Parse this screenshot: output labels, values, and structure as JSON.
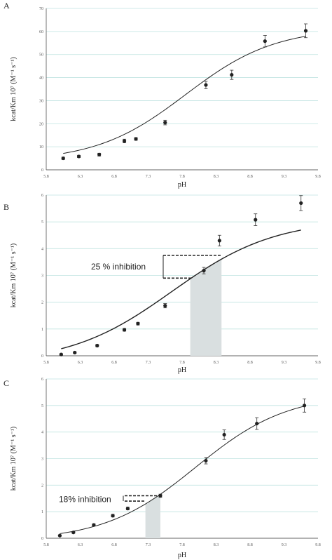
{
  "chart_data": [
    {
      "type": "scatter",
      "panel_label": "A",
      "xlabel": "pH",
      "ylabel": "kcat/Km 10⁷ (M⁻¹ s⁻¹)",
      "xlim": [
        5.8,
        9.8
      ],
      "ylim": [
        0,
        70
      ],
      "x_ticks": [
        "5.8",
        "6.3",
        "6.8",
        "7.3",
        "7.8",
        "8.3",
        "8.8",
        "9.3",
        "9.8"
      ],
      "y_ticks": [
        "0",
        "10",
        "20",
        "30",
        "40",
        "50",
        "60",
        "70"
      ],
      "grid": "horizontal",
      "fit_curve": {
        "base": 3.6,
        "amplitude": 58.0,
        "midpoint": 7.85,
        "slope": 1.52
      },
      "points": [
        {
          "x": 6.05,
          "y": 5.0,
          "err": 0.5
        },
        {
          "x": 6.28,
          "y": 5.8,
          "err": 0.5
        },
        {
          "x": 6.58,
          "y": 6.6,
          "err": 0.6
        },
        {
          "x": 6.95,
          "y": 12.5,
          "err": 0.8
        },
        {
          "x": 7.12,
          "y": 13.4,
          "err": 0.6
        },
        {
          "x": 7.55,
          "y": 20.5,
          "err": 1.0
        },
        {
          "x": 8.15,
          "y": 36.8,
          "err": 1.6
        },
        {
          "x": 8.53,
          "y": 41.2,
          "err": 2.0
        },
        {
          "x": 9.02,
          "y": 55.8,
          "err": 2.5
        },
        {
          "x": 9.62,
          "y": 60.3,
          "err": 3.0
        }
      ]
    },
    {
      "type": "scatter",
      "panel_label": "B",
      "xlabel": "pH",
      "ylabel": "kcat/Km 10⁷ (M⁻¹ s⁻¹)",
      "xlim": [
        5.8,
        9.8
      ],
      "ylim": [
        0,
        6
      ],
      "x_ticks": [
        "5.8",
        "6.3",
        "6.8",
        "7.3",
        "7.8",
        "8.3",
        "8.8",
        "9.3",
        "9.8"
      ],
      "y_ticks": [
        "0",
        "1",
        "2",
        "3",
        "4",
        "5",
        "6"
      ],
      "grid": "horizontal",
      "fit_curve": {
        "base": -0.3,
        "amplitude": 5.4,
        "midpoint": 7.65,
        "slope": 1.32
      },
      "points": [
        {
          "x": 6.02,
          "y": 0.05,
          "err": 0.03
        },
        {
          "x": 6.22,
          "y": 0.12,
          "err": 0.03
        },
        {
          "x": 6.55,
          "y": 0.38,
          "err": 0.04
        },
        {
          "x": 6.95,
          "y": 0.97,
          "err": 0.05
        },
        {
          "x": 7.15,
          "y": 1.2,
          "err": 0.05
        },
        {
          "x": 7.55,
          "y": 1.87,
          "err": 0.08
        },
        {
          "x": 8.12,
          "y": 3.18,
          "err": 0.12
        },
        {
          "x": 8.35,
          "y": 4.3,
          "err": 0.2
        },
        {
          "x": 8.88,
          "y": 5.08,
          "err": 0.22
        },
        {
          "x": 9.55,
          "y": 5.7,
          "err": 0.28
        }
      ],
      "annotation": {
        "text": "25 % inhibition",
        "y_upper": 3.75,
        "y_lower": 2.9,
        "x_left": 7.92,
        "x_right": 8.38
      }
    },
    {
      "type": "scatter",
      "panel_label": "C",
      "xlabel": "pH",
      "ylabel": "kcat/Km 10⁷ (M⁻¹ s⁻¹)",
      "xlim": [
        5.8,
        9.8
      ],
      "ylim": [
        0,
        6
      ],
      "x_ticks": [
        "5.8",
        "6.3",
        "6.8",
        "7.3",
        "7.8",
        "8.3",
        "8.8",
        "9.3",
        "9.8"
      ],
      "y_ticks": [
        "0",
        "1",
        "2",
        "3",
        "4",
        "5",
        "6"
      ],
      "grid": "horizontal",
      "fit_curve": {
        "base": -0.1,
        "amplitude": 5.55,
        "midpoint": 8.0,
        "slope": 1.48
      },
      "points": [
        {
          "x": 6.0,
          "y": 0.1,
          "err": 0.02
        },
        {
          "x": 6.2,
          "y": 0.22,
          "err": 0.03
        },
        {
          "x": 6.5,
          "y": 0.5,
          "err": 0.04
        },
        {
          "x": 6.78,
          "y": 0.85,
          "err": 0.05
        },
        {
          "x": 7.0,
          "y": 1.12,
          "err": 0.05
        },
        {
          "x": 7.48,
          "y": 1.6,
          "err": 0.06
        },
        {
          "x": 8.15,
          "y": 2.92,
          "err": 0.12
        },
        {
          "x": 8.42,
          "y": 3.9,
          "err": 0.18
        },
        {
          "x": 8.9,
          "y": 4.32,
          "err": 0.22
        },
        {
          "x": 9.6,
          "y": 5.0,
          "err": 0.25
        }
      ],
      "annotation": {
        "text": "18% inhibition",
        "y_upper": 1.6,
        "y_lower": 1.4,
        "x_left": 7.26,
        "x_right": 7.48
      }
    }
  ]
}
